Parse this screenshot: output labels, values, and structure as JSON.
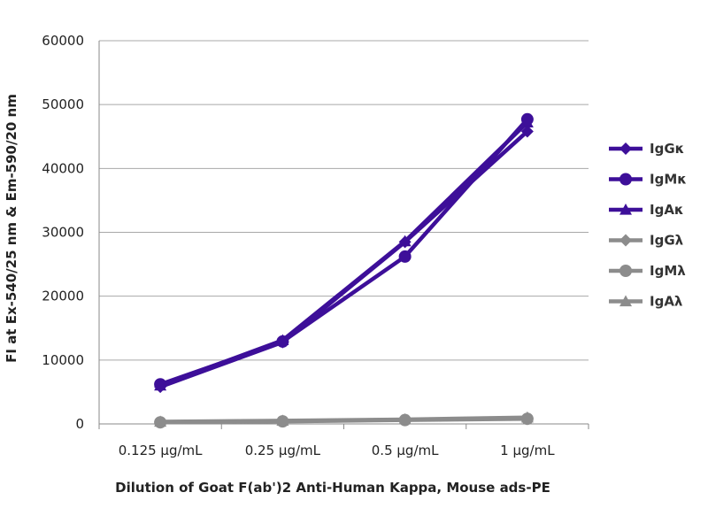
{
  "chart_data": {
    "type": "line",
    "title": "",
    "xlabel": "Dilution of Goat F(ab')2 Anti-Human Kappa, Mouse ads-PE",
    "ylabel": "FI at Ex-540/25 nm & Em-590/20 nm",
    "categories": [
      "0.125 µg/mL",
      "0.25 µg/mL",
      "0.5 µg/mL",
      "1 µg/mL"
    ],
    "ylim": [
      0,
      60000
    ],
    "yticks": [
      "0",
      "10000",
      "20000",
      "30000",
      "40000",
      "50000",
      "60000"
    ],
    "grid": true,
    "legend_position": "right",
    "series": [
      {
        "name": "IgGκ",
        "marker": "diamond",
        "color": "#3d0f99",
        "values": [
          5800,
          12800,
          28500,
          45800
        ]
      },
      {
        "name": "IgMκ",
        "marker": "circle",
        "color": "#3d0f99",
        "values": [
          6200,
          12900,
          26200,
          47700
        ]
      },
      {
        "name": "IgAκ",
        "marker": "triangle",
        "color": "#3d0f99",
        "values": [
          6000,
          13100,
          28600,
          47200
        ]
      },
      {
        "name": "IgGλ",
        "marker": "diamond",
        "color": "#8c8c8c",
        "values": [
          300,
          450,
          650,
          900
        ]
      },
      {
        "name": "IgMλ",
        "marker": "circle",
        "color": "#8c8c8c",
        "values": [
          250,
          400,
          600,
          800
        ]
      },
      {
        "name": "IgAλ",
        "marker": "triangle",
        "color": "#8c8c8c",
        "values": [
          350,
          500,
          700,
          1000
        ]
      }
    ]
  }
}
